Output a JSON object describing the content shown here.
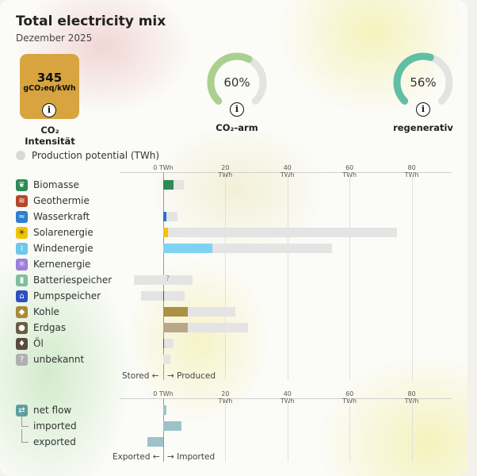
{
  "header": {
    "title": "Total electricity mix",
    "subtitle": "Dezember 2025"
  },
  "kpis": {
    "intensity": {
      "value": "345",
      "unit": "gCO₂eq/kWh",
      "label": "CO₂ Intensität",
      "color": "#d7a43f"
    },
    "low_carbon": {
      "percent": 60,
      "percent_label": "60%",
      "label": "CO₂-arm",
      "color": "#a9d08e"
    },
    "renewable": {
      "percent": 56,
      "percent_label": "56%",
      "label": "regenerativ",
      "color": "#5fbfa3"
    }
  },
  "legend": {
    "potential_label": "Production potential (TWh)"
  },
  "chart_data": {
    "type": "bar",
    "xlim": [
      -10,
      80
    ],
    "ticks": [
      "0 TWh",
      "20 TWh",
      "40 TWh",
      "60 TWh",
      "80 TWh"
    ],
    "tick_values": [
      0,
      20,
      40,
      60,
      80
    ],
    "rows": [
      {
        "label": "Biomasse",
        "icon": "leaf-icon",
        "icon_color": "#2f8a55",
        "produced": 3.4,
        "stored": 0,
        "potential": 6.6,
        "color": "#2f8a55"
      },
      {
        "label": "Geothermie",
        "icon": "heat-icon",
        "icon_color": "#b5482a",
        "produced": 0,
        "stored": 0,
        "potential": 0,
        "color": "#b5482a"
      },
      {
        "label": "Wasserkraft",
        "icon": "water-icon",
        "icon_color": "#2d7fcf",
        "produced": 1.0,
        "stored": 0,
        "potential": 4.6,
        "color": "#2d6fd6"
      },
      {
        "label": "Solarenergie",
        "icon": "sun-icon",
        "icon_color": "#f2c400",
        "produced": 1.5,
        "stored": 0,
        "potential": 75.3,
        "color": "#f2c400"
      },
      {
        "label": "Windenergie",
        "icon": "wind-icon",
        "icon_color": "#6fc8ea",
        "produced": 15.8,
        "stored": 0,
        "potential": 54.3,
        "color": "#7fd3f2"
      },
      {
        "label": "Kernenergie",
        "icon": "atom-icon",
        "icon_color": "#9b7fd9",
        "produced": 0,
        "stored": 0,
        "potential": 0,
        "color": "#9b7fd9"
      },
      {
        "label": "Batteriespeicher",
        "icon": "battery-icon",
        "icon_color": "#7fbf9a",
        "produced": 0,
        "stored": -9.5,
        "potential": 9.5,
        "color": "#7fbf9a"
      },
      {
        "label": "Pumpspeicher",
        "icon": "pump-icon",
        "icon_color": "#2f4fbf",
        "produced": 0.2,
        "stored": -7.1,
        "potential": 6.8,
        "color": "#2f4fbf"
      },
      {
        "label": "Kohle",
        "icon": "coal-icon",
        "icon_color": "#a88a3a",
        "produced": 7.8,
        "stored": 0,
        "potential": 23.2,
        "color": "#ad8f45"
      },
      {
        "label": "Erdgas",
        "icon": "gas-icon",
        "icon_color": "#6b5a45",
        "produced": 7.8,
        "stored": 0,
        "potential": 27.3,
        "color": "#b8a888"
      },
      {
        "label": "Öl",
        "icon": "oil-icon",
        "icon_color": "#5a4a3e",
        "produced": 0.3,
        "stored": 0,
        "potential": 3.3,
        "color": "#555"
      },
      {
        "label": "unbekannt",
        "icon": "question-icon",
        "icon_color": "#b0b0b0",
        "produced": 0,
        "stored": 0,
        "potential": 2.3,
        "color": "#bbbbbb"
      }
    ],
    "axis_caption": {
      "left": "Stored ←",
      "right": "→ Produced"
    },
    "flow": {
      "rows": [
        {
          "label": "net flow",
          "value": 0.9
        },
        {
          "label": "imported",
          "value": 5.9
        },
        {
          "label": "exported",
          "value": -5.1
        }
      ],
      "icon": "exchange-icon",
      "icon_color": "#5f9ea0",
      "color": "#9cc3c8",
      "axis_caption": {
        "left": "Exported ←",
        "right": "→ Imported"
      }
    }
  },
  "qmark": "?"
}
